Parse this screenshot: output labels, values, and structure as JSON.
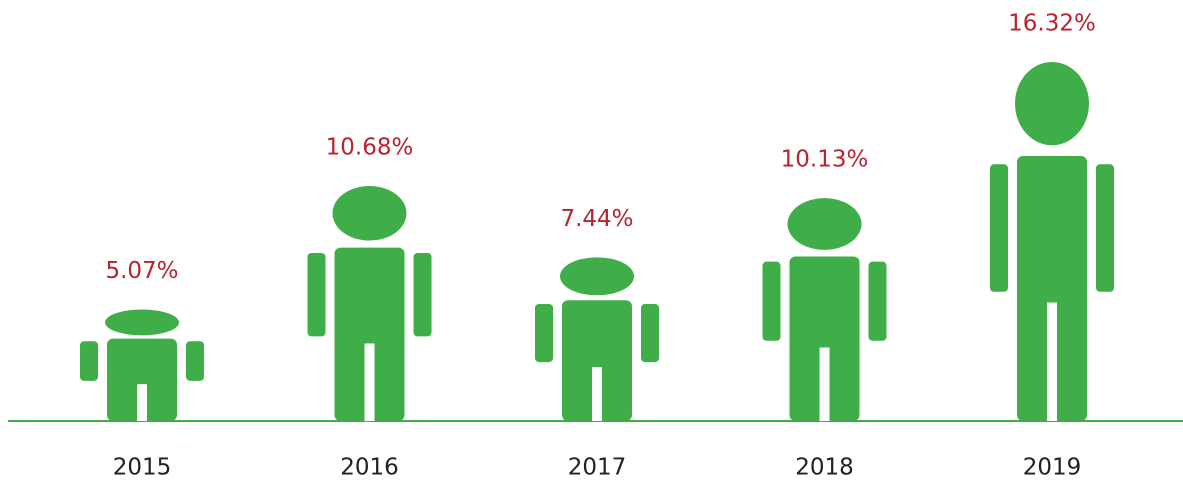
{
  "chart_data": {
    "type": "pictograph",
    "categories": [
      "2015",
      "2016",
      "2017",
      "2018",
      "2019"
    ],
    "values": [
      5.07,
      10.68,
      7.44,
      10.13,
      16.32
    ],
    "value_labels": [
      "5.07%",
      "10.68%",
      "7.44%",
      "10.13%",
      "16.32%"
    ],
    "color": "#3fae49",
    "label_color": "#b8232f"
  }
}
